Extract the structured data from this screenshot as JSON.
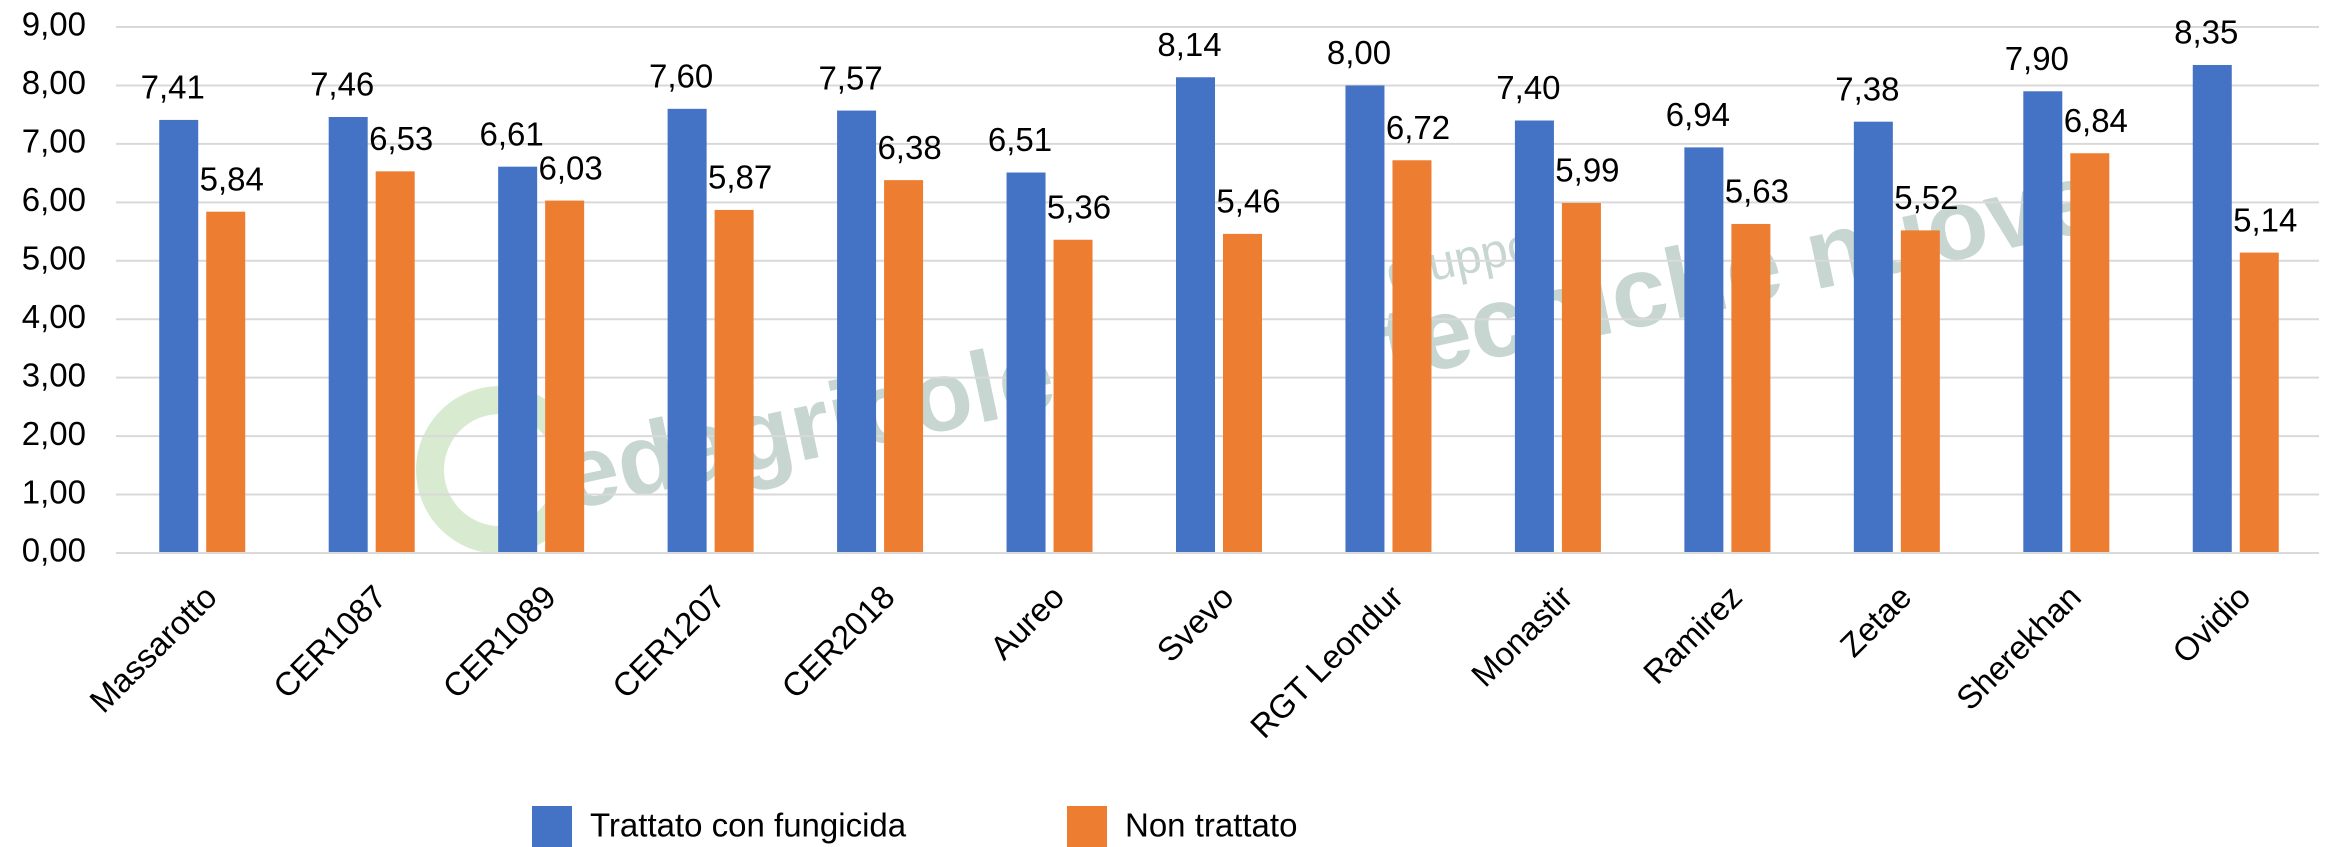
{
  "chart_data": {
    "type": "bar",
    "categories": [
      "Massarotto",
      "CER1087",
      "CER1089",
      "CER1207",
      "CER2018",
      "Aureo",
      "Svevo",
      "RGT Leondur",
      "Monastir",
      "Ramirez",
      "Zetae",
      "Sherekhan",
      "Ovidio"
    ],
    "series": [
      {
        "name": "Trattato con fungicida",
        "color": "#4472c4",
        "values": [
          7.41,
          7.46,
          6.61,
          7.6,
          7.57,
          6.51,
          8.14,
          8.0,
          7.4,
          6.94,
          7.38,
          7.9,
          8.35
        ],
        "value_labels": [
          "7,41",
          "7,46",
          "6,61",
          "7,60",
          "7,57",
          "6,51",
          "8,14",
          "8,00",
          "7,40",
          "6,94",
          "7,38",
          "7,90",
          "8,35"
        ]
      },
      {
        "name": "Non trattato",
        "color": "#ed7d31",
        "values": [
          5.84,
          6.53,
          6.03,
          5.87,
          6.38,
          5.36,
          5.46,
          6.72,
          5.99,
          5.63,
          5.52,
          6.84,
          5.14
        ],
        "value_labels": [
          "5,84",
          "6,53",
          "6,03",
          "5,87",
          "6,38",
          "5,36",
          "5,46",
          "6,72",
          "5,99",
          "5,63",
          "5,52",
          "6,84",
          "5,14"
        ]
      }
    ],
    "ylim": [
      0,
      9
    ],
    "yticks": [
      {
        "value": 0,
        "label": "0,00"
      },
      {
        "value": 1,
        "label": "1,00"
      },
      {
        "value": 2,
        "label": "2,00"
      },
      {
        "value": 3,
        "label": "3,00"
      },
      {
        "value": 4,
        "label": "4,00"
      },
      {
        "value": 5,
        "label": "5,00"
      },
      {
        "value": 6,
        "label": "6,00"
      },
      {
        "value": 7,
        "label": "7,00"
      },
      {
        "value": 8,
        "label": "8,00"
      },
      {
        "value": 9,
        "label": "9,00"
      }
    ],
    "grid": true,
    "legend": "bottom",
    "watermark": [
      "edagricole",
      "gruppo",
      "tecniche nuove"
    ]
  }
}
